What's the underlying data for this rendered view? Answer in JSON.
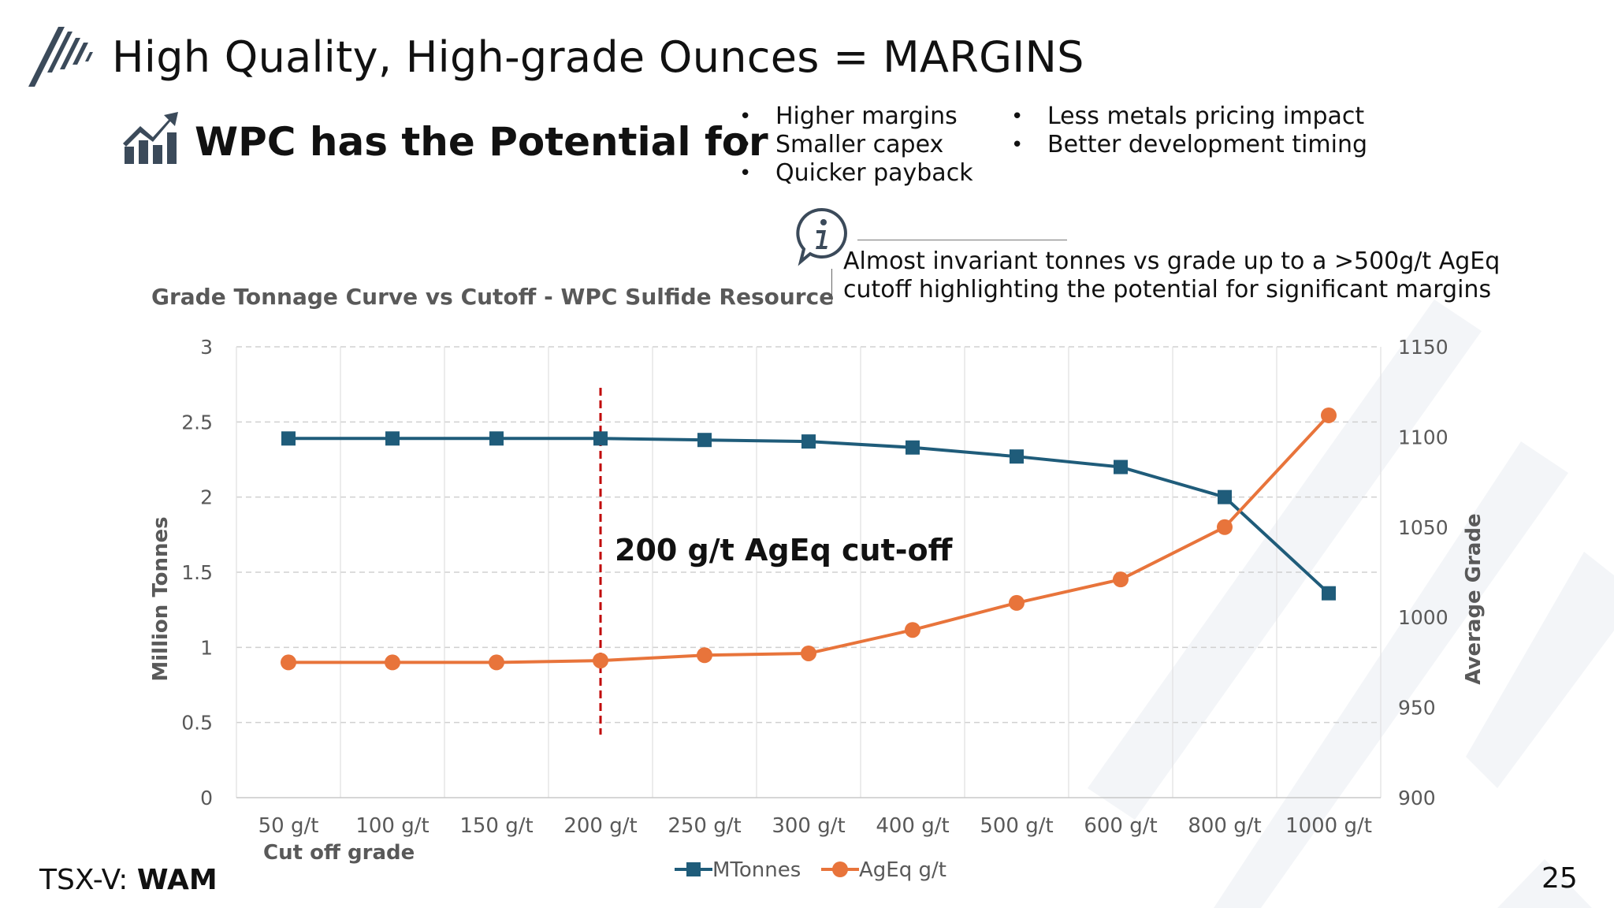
{
  "header": {
    "title": "High Quality, High-grade Ounces = MARGINS",
    "subtitle": "WPC has the Potential for",
    "bullets_left": [
      "Higher margins",
      "Smaller capex",
      "Quicker payback"
    ],
    "bullets_right": [
      "Less metals pricing impact",
      "Better development timing"
    ]
  },
  "info": {
    "line1": "Almost invariant tonnes vs grade up to a >500g/t AgEq",
    "line2": "cutoff highlighting the potential for significant margins"
  },
  "footer": {
    "ticker_prefix": "TSX-V: ",
    "ticker_symbol": "WAM",
    "page_number": "25"
  },
  "colors": {
    "mtonnes": "#1f5c7a",
    "ageq": "#e8743b",
    "cutoff_line": "#c00000",
    "grid": "#d0d0d0",
    "text_gray": "#595959"
  },
  "chart_data": {
    "type": "line",
    "title": "Grade Tonnage Curve vs Cutoff - WPC Sulfide Resource",
    "xlabel": "Cut off grade",
    "ylabel": "Million Tonnes",
    "y2label": "Average Grade",
    "categories": [
      "50 g/t",
      "100 g/t",
      "150 g/t",
      "200 g/t",
      "250 g/t",
      "300 g/t",
      "400 g/t",
      "500 g/t",
      "600 g/t",
      "800 g/t",
      "1000 g/t"
    ],
    "ylim": [
      0,
      3
    ],
    "yticks": [
      "0",
      "0.5",
      "1",
      "1.5",
      "2",
      "2.5",
      "3"
    ],
    "y2lim": [
      900,
      1150
    ],
    "y2ticks": [
      "900",
      "950",
      "1000",
      "1050",
      "1100",
      "1150"
    ],
    "series": [
      {
        "name": "MTonnes",
        "axis": "left",
        "marker": "square",
        "values": [
          2.39,
          2.39,
          2.39,
          2.39,
          2.38,
          2.37,
          2.33,
          2.27,
          2.2,
          2.0,
          1.36
        ]
      },
      {
        "name": "AgEq g/t",
        "axis": "right",
        "marker": "circle",
        "values": [
          975,
          975,
          975,
          976,
          979,
          980,
          993,
          1008,
          1021,
          1050,
          1112
        ]
      }
    ],
    "cutoff": {
      "category_index": 3,
      "label": "200 g/t AgEq cut-off"
    },
    "legend_position": "bottom-center",
    "grid": true
  }
}
